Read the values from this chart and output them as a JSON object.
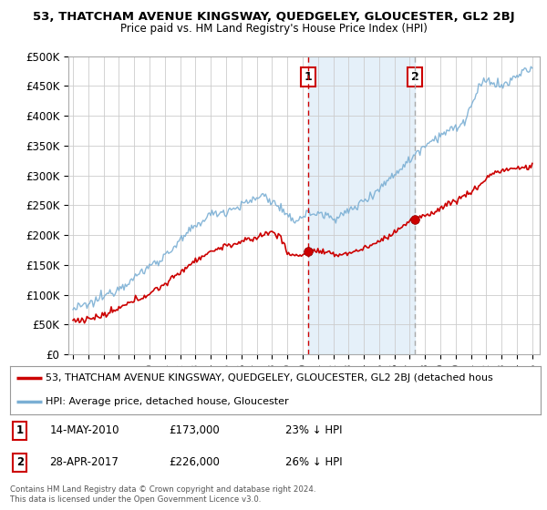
{
  "title": "53, THATCHAM AVENUE KINGSWAY, QUEDGELEY, GLOUCESTER, GL2 2BJ",
  "subtitle": "Price paid vs. HM Land Registry's House Price Index (HPI)",
  "background_color": "#ffffff",
  "plot_bg_color": "#ffffff",
  "grid_color": "#cccccc",
  "hpi_line_color": "#7bafd4",
  "price_line_color": "#cc0000",
  "vline1_color": "#cc0000",
  "vline2_color": "#aaaaaa",
  "sale1_date_x": 2010.37,
  "sale2_date_x": 2017.33,
  "sale1_price": 173000,
  "sale2_price": 226000,
  "ylim": [
    0,
    500000
  ],
  "xlim": [
    1994.7,
    2025.5
  ],
  "yticks": [
    0,
    50000,
    100000,
    150000,
    200000,
    250000,
    300000,
    350000,
    400000,
    450000,
    500000
  ],
  "ytick_labels": [
    "£0",
    "£50K",
    "£100K",
    "£150K",
    "£200K",
    "£250K",
    "£300K",
    "£350K",
    "£400K",
    "£450K",
    "£500K"
  ],
  "legend_label_red": "53, THATCHAM AVENUE KINGSWAY, QUEDGELEY, GLOUCESTER, GL2 2BJ (detached hous",
  "legend_label_blue": "HPI: Average price, detached house, Gloucester",
  "note1_date": "14-MAY-2010",
  "note1_price": "£173,000",
  "note1_hpi": "23% ↓ HPI",
  "note2_date": "28-APR-2017",
  "note2_price": "£226,000",
  "note2_hpi": "26% ↓ HPI",
  "footer": "Contains HM Land Registry data © Crown copyright and database right 2024.\nThis data is licensed under the Open Government Licence v3.0.",
  "shade_color": "#daeaf7"
}
